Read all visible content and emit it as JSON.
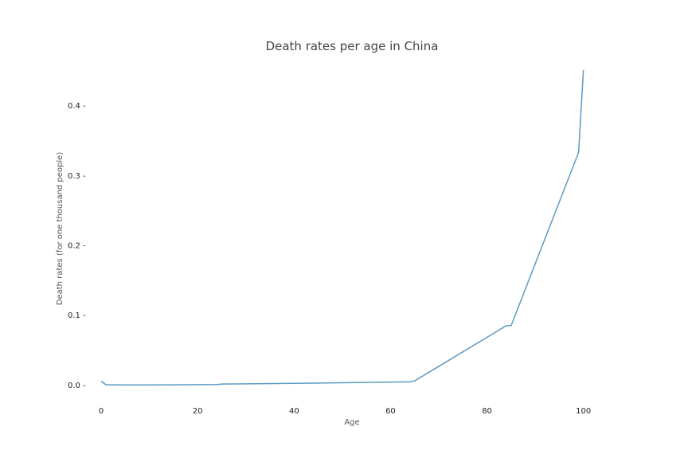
{
  "chart_data": {
    "type": "line",
    "title": "Death rates per age in China",
    "xlabel": "Age",
    "ylabel": "Death rates (for one thousand people)",
    "xlim": [
      -2,
      106
    ],
    "ylim": [
      -0.028,
      0.46
    ],
    "x_ticks": [
      0,
      20,
      40,
      60,
      80,
      100
    ],
    "x_tick_labels": [
      "0",
      "20",
      "40",
      "60",
      "80",
      "100"
    ],
    "y_ticks": [
      0.0,
      0.1,
      0.2,
      0.3,
      0.4
    ],
    "y_tick_labels": [
      "0.0 -",
      "0.1 -",
      "0.2 -",
      "0.3 -",
      "0.4 -"
    ],
    "grid": false,
    "colors": {
      "line": "#5b9bc4"
    },
    "series": [
      {
        "x": [
          0,
          1,
          2,
          3,
          4,
          5,
          10,
          15,
          19,
          20,
          24,
          25,
          30,
          40,
          50,
          60,
          64,
          65,
          84,
          85,
          99,
          100
        ],
        "y": [
          0.0055,
          0.0004,
          0.0003,
          0.0003,
          0.0002,
          0.0002,
          0.0002,
          0.0003,
          0.0005,
          0.0006,
          0.0008,
          0.0015,
          0.0018,
          0.0025,
          0.0033,
          0.0042,
          0.0047,
          0.006,
          0.085,
          0.085,
          0.333,
          0.451
        ]
      }
    ]
  }
}
